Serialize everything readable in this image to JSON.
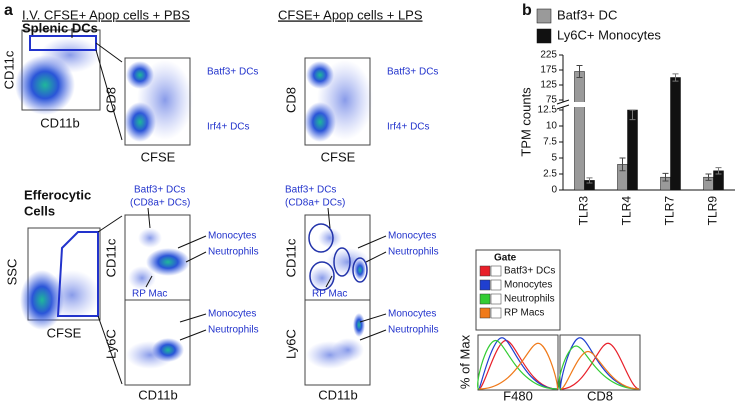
{
  "panel_labels": [
    "a",
    "b"
  ],
  "splenic_plot": {
    "gate_label": "Splenic DCs",
    "y_label": "CD11c",
    "x_label": "CD11b"
  },
  "efferocytic_plot": {
    "title_lines": [
      "Efferocytic",
      "Cells"
    ],
    "y_label": "SSC",
    "x_label": "CFSE"
  },
  "columns": [
    {
      "title": "I.V. CFSE+ Apop cells + PBS",
      "dc_plot": {
        "y_label": "CD8",
        "x_label": "CFSE",
        "populations": [
          "Batf3+ DCs",
          "Irf4+ DCs"
        ]
      },
      "cd11c_plot": {
        "y_label": "CD11c",
        "labels": [
          "Batf3+ DCs",
          "(CD8a+ DCs)",
          "Monocytes",
          "Neutrophils",
          "RP Mac"
        ]
      },
      "ly6c_plot": {
        "y_label": "Ly6C",
        "x_label": "CD11b",
        "labels": [
          "Monocytes",
          "Neutrophils"
        ]
      }
    },
    {
      "title": "CFSE+ Apop cells + LPS",
      "dc_plot": {
        "y_label": "CD8",
        "x_label": "CFSE",
        "populations": [
          "Batf3+ DCs",
          "Irf4+ DCs"
        ]
      },
      "cd11c_plot": {
        "y_label": "CD11c",
        "labels": [
          "Batf3+ DCs",
          "(CD8a+ DCs)",
          "Monocytes",
          "Neutrophils",
          "RP Mac"
        ]
      },
      "ly6c_plot": {
        "y_label": "Ly6C",
        "x_label": "CD11b",
        "labels": [
          "Monocytes",
          "Neutrophils"
        ]
      }
    }
  ],
  "histograms": {
    "legend_title": "Gate",
    "gates": [
      {
        "name": "Batf3+ DCs",
        "color": "#e8202a"
      },
      {
        "name": "Monocytes",
        "color": "#1f3fd0"
      },
      {
        "name": "Neutrophils",
        "color": "#33cc33"
      },
      {
        "name": "RP Macs",
        "color": "#f07a1a"
      }
    ],
    "y_label": "% of Max",
    "x_labels": [
      "F480",
      "CD8"
    ]
  },
  "chart_data": {
    "type": "bar",
    "y_label": "TPM counts",
    "categories": [
      "TLR3",
      "TLR4",
      "TLR7",
      "TLR9"
    ],
    "series": [
      {
        "name": "Batf3+ DC",
        "color": "#9a9a9a",
        "values": [
          170,
          4,
          2,
          2
        ],
        "errors": [
          20,
          1,
          0.6,
          0.5
        ]
      },
      {
        "name": "Ly6C+ Monocytes",
        "color": "#111111",
        "values": [
          1.5,
          12.5,
          150,
          3
        ],
        "errors": [
          0.4,
          1.5,
          12,
          0.5
        ]
      }
    ],
    "ylim": [
      0,
      12.5
    ],
    "yticks": [
      0,
      2.5,
      5,
      7.5,
      10,
      12.5
    ],
    "y_break": {
      "ylim": [
        75,
        225
      ],
      "yticks": [
        75,
        125,
        175,
        225
      ]
    }
  }
}
